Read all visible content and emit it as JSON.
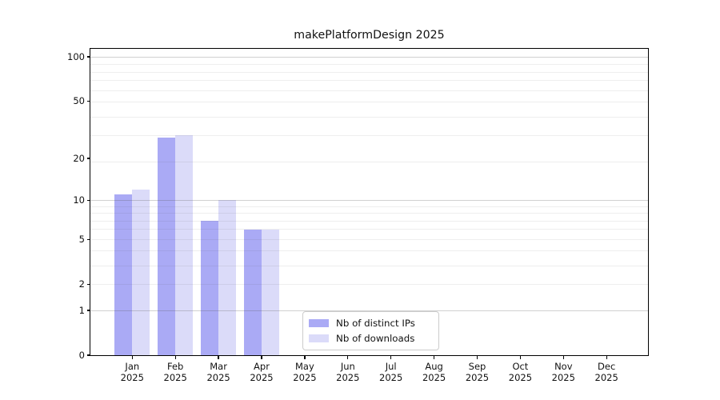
{
  "title": "makePlatformDesign 2025",
  "chart_data": {
    "type": "bar",
    "title": "makePlatformDesign 2025",
    "categories": [
      "Jan",
      "Feb",
      "Mar",
      "Apr",
      "May",
      "Jun",
      "Jul",
      "Aug",
      "Sep",
      "Oct",
      "Nov",
      "Dec"
    ],
    "category_year": "2025",
    "series": [
      {
        "name": "Nb of distinct IPs",
        "color": "#aaaaf5",
        "values": [
          11,
          28,
          7,
          6,
          0,
          0,
          0,
          0,
          0,
          0,
          0,
          0
        ]
      },
      {
        "name": "Nb of downloads",
        "color": "#dbdbf9",
        "values": [
          12,
          29,
          10,
          6,
          0,
          0,
          0,
          0,
          0,
          0,
          0,
          0
        ]
      }
    ],
    "xlabel": "",
    "ylabel": "",
    "y_ticks": [
      0,
      1,
      2,
      5,
      10,
      20,
      50,
      100
    ],
    "y_scale": "log1p",
    "ylim": [
      0,
      120
    ],
    "grid": "horizontal",
    "legend_position": "lower center",
    "background_color": "#ffffff",
    "text_color": "#111111"
  }
}
